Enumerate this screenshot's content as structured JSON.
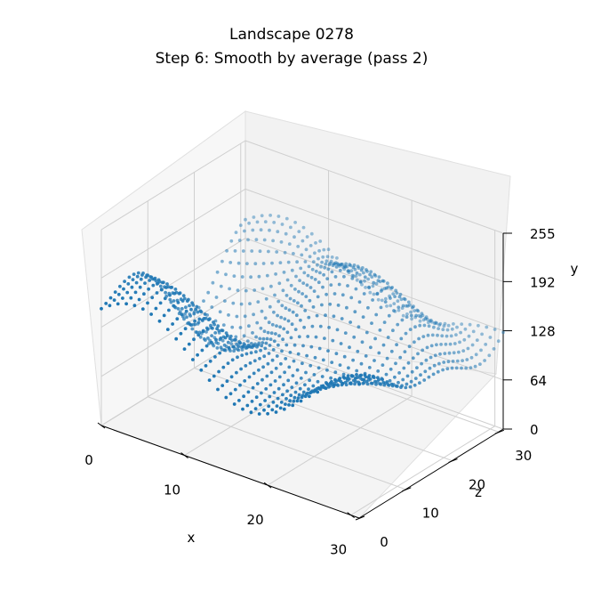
{
  "chart_data": {
    "type": "scatter",
    "title_line1": "Landscape 0278",
    "title_line2": "Step 6: Smooth by average (pass 2)",
    "xlabel": "x",
    "ylabel": "y",
    "zlabel": "z",
    "xlim": [
      0,
      31
    ],
    "zlim": [
      0,
      31
    ],
    "ylim": [
      0,
      255
    ],
    "x_ticks": [
      "0",
      "10",
      "20",
      "30"
    ],
    "z_ticks": [
      "0",
      "10",
      "20",
      "30"
    ],
    "y_ticks": [
      "0",
      "64",
      "128",
      "192",
      "255"
    ],
    "grid": true,
    "grid_size": 32,
    "point_color": "#1f77b4",
    "description": "32x32 grid of height samples (x, z in 0..31), heights roughly between 60 and 200"
  }
}
